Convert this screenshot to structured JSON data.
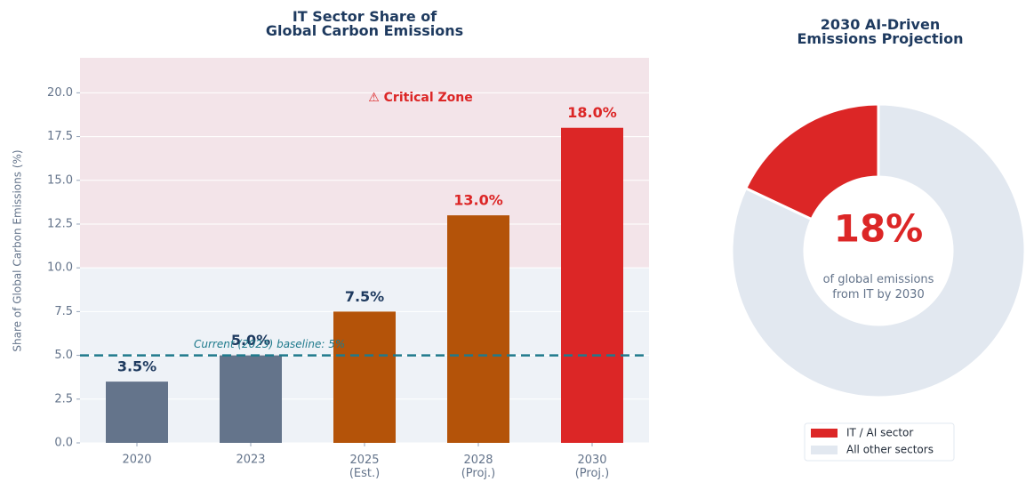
{
  "chart_data": [
    {
      "type": "bar",
      "title": "IT Sector Share of\nGlobal Carbon Emissions",
      "y_label": "Share of Global Carbon Emissions (%)",
      "categories": [
        "2020",
        "2023",
        "2025\n(Est.)",
        "2028\n(Proj.)",
        "2030\n(Proj.)"
      ],
      "values": [
        3.5,
        5.0,
        7.5,
        13.0,
        18.0
      ],
      "value_labels": [
        "3.5%",
        "5.0%",
        "7.5%",
        "13.0%",
        "18.0%"
      ],
      "colors": [
        "#64748b",
        "#64748b",
        "#b45309",
        "#b45309",
        "#dc2626"
      ],
      "value_label_colors": [
        "#1e3a5f",
        "#1e3a5f",
        "#1e3a5f",
        "#dc2626",
        "#dc2626"
      ],
      "ylim": [
        0,
        22
      ],
      "yticks": [
        {
          "value": 0,
          "label": "0.0"
        },
        {
          "value": 2.5,
          "label": "2.5"
        },
        {
          "value": 5,
          "label": "5.0"
        },
        {
          "value": 7.5,
          "label": "7.5"
        },
        {
          "value": 10,
          "label": "10.0"
        },
        {
          "value": 12.5,
          "label": "12.5"
        },
        {
          "value": 15,
          "label": "15.0"
        },
        {
          "value": 17.5,
          "label": "17.5"
        },
        {
          "value": 20,
          "label": "20.0"
        }
      ],
      "grid": true,
      "zone": {
        "from": 10,
        "to": 22,
        "label": "⚠ Critical Zone",
        "color": "#f3e4e9"
      },
      "baseline": {
        "value": 5,
        "label": "Current (2023) baseline: 5%",
        "color": "#1f7a8c"
      }
    },
    {
      "type": "pie",
      "title": "2030 AI-Driven\nEmissions Projection",
      "categories": [
        "IT / AI sector",
        "All other sectors"
      ],
      "values": [
        18,
        82
      ],
      "colors": [
        "#dc2626",
        "#e2e8f0"
      ],
      "center_label": "18%",
      "center_sublabel": "of global emissions\nfrom IT by 2030"
    }
  ]
}
